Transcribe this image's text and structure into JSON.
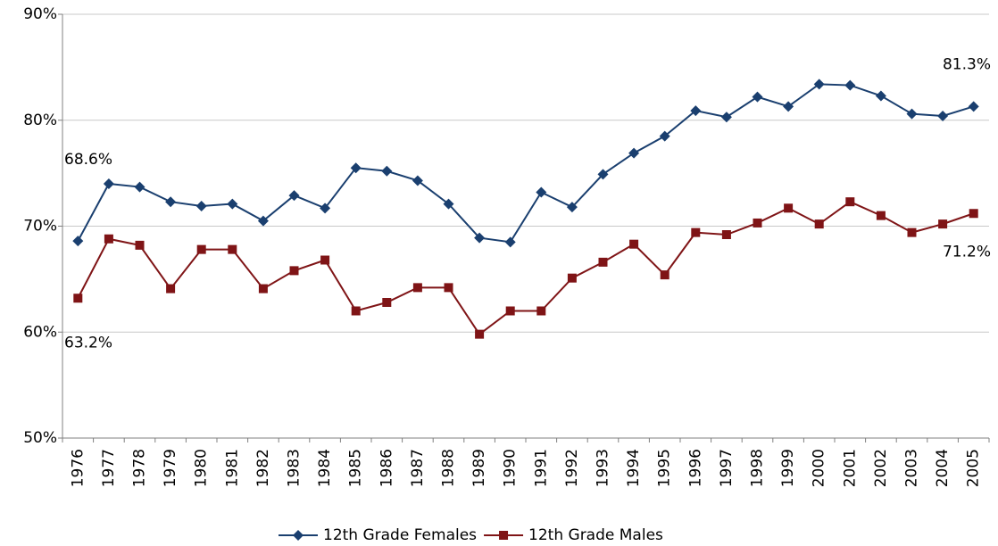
{
  "chart_data": {
    "type": "line",
    "categories": [
      "1976",
      "1977",
      "1978",
      "1979",
      "1980",
      "1981",
      "1982",
      "1983",
      "1984",
      "1985",
      "1986",
      "1987",
      "1988",
      "1989",
      "1990",
      "1991",
      "1992",
      "1993",
      "1994",
      "1995",
      "1996",
      "1997",
      "1998",
      "1999",
      "2000",
      "2001",
      "2002",
      "2003",
      "2004",
      "2005"
    ],
    "series": [
      {
        "name": "12th Grade Females",
        "color": "#1a3f6f",
        "marker": "diamond",
        "values": [
          68.6,
          74.0,
          73.7,
          72.3,
          71.9,
          72.1,
          70.5,
          72.9,
          71.7,
          75.5,
          75.2,
          74.3,
          72.1,
          68.9,
          68.5,
          73.2,
          71.8,
          74.9,
          76.9,
          78.5,
          80.9,
          80.3,
          82.2,
          81.3,
          83.4,
          83.3,
          82.3,
          80.6,
          80.4,
          81.3
        ],
        "value_labels": [
          "68.6%",
          null,
          null,
          null,
          null,
          null,
          null,
          null,
          null,
          null,
          null,
          null,
          null,
          null,
          null,
          null,
          null,
          null,
          null,
          null,
          null,
          null,
          null,
          null,
          null,
          null,
          null,
          null,
          null,
          "81.3%"
        ]
      },
      {
        "name": "12th Grade Males",
        "color": "#7f1416",
        "marker": "square",
        "values": [
          63.2,
          68.8,
          68.2,
          64.1,
          67.8,
          67.8,
          64.1,
          65.8,
          66.8,
          62.0,
          62.8,
          64.2,
          64.2,
          59.8,
          62.0,
          62.0,
          65.1,
          66.6,
          68.3,
          65.4,
          69.4,
          69.2,
          70.3,
          71.7,
          70.2,
          72.3,
          71.0,
          69.4,
          70.2,
          71.2
        ],
        "value_labels": [
          "63.2%",
          null,
          null,
          null,
          null,
          null,
          null,
          null,
          null,
          null,
          null,
          null,
          null,
          null,
          null,
          null,
          null,
          null,
          null,
          null,
          null,
          null,
          null,
          null,
          null,
          null,
          null,
          null,
          null,
          "71.2%"
        ]
      }
    ],
    "ylim": [
      50,
      90
    ],
    "yticks": [
      {
        "value": 50,
        "label": "50%"
      },
      {
        "value": 60,
        "label": "60%"
      },
      {
        "value": 70,
        "label": "70%"
      },
      {
        "value": 80,
        "label": "80%"
      },
      {
        "value": 90,
        "label": "90%"
      }
    ],
    "grid": true,
    "legend": "bottom"
  }
}
